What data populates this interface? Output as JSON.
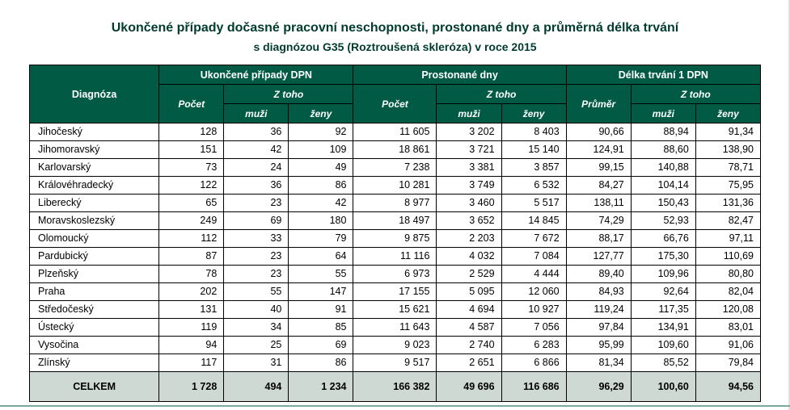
{
  "title": "Ukončené případy dočasné pracovní neschopnosti, prostonané dny a průměrná délka trvání",
  "subtitle": "s diagnózou G35 (Roztroušená skleróza)  v roce 2015",
  "colors": {
    "header_bg": "#015b44",
    "header_text": "#ffffff",
    "title_text": "#013b2d",
    "total_bg": "#cfd9d3",
    "border": "#000000"
  },
  "table": {
    "header": {
      "diagnoza": "Diagnóza",
      "group1": "Ukončené případy DPN",
      "group2": "Prostonané dny",
      "group3": "Délka trvání 1 DPN",
      "pocet": "Počet",
      "ztoho": "Z toho",
      "prumer": "Průměr",
      "muzi": "muži",
      "zeny": "ženy"
    },
    "rows": [
      {
        "label": "Jihočeský",
        "v": [
          "128",
          "36",
          "92",
          "11 605",
          "3 202",
          "8 403",
          "90,66",
          "88,94",
          "91,34"
        ]
      },
      {
        "label": "Jihomoravský",
        "v": [
          "151",
          "42",
          "109",
          "18 861",
          "3 721",
          "15 140",
          "124,91",
          "88,60",
          "138,90"
        ]
      },
      {
        "label": "Karlovarský",
        "v": [
          "73",
          "24",
          "49",
          "7 238",
          "3 381",
          "3 857",
          "99,15",
          "140,88",
          "78,71"
        ]
      },
      {
        "label": "Královéhradecký",
        "v": [
          "122",
          "36",
          "86",
          "10 281",
          "3 749",
          "6 532",
          "84,27",
          "104,14",
          "75,95"
        ]
      },
      {
        "label": "Liberecký",
        "v": [
          "65",
          "23",
          "42",
          "8 977",
          "3 460",
          "5 517",
          "138,11",
          "150,43",
          "131,36"
        ]
      },
      {
        "label": "Moravskoslezský",
        "v": [
          "249",
          "69",
          "180",
          "18 497",
          "3 652",
          "14 845",
          "74,29",
          "52,93",
          "82,47"
        ]
      },
      {
        "label": "Olomoucký",
        "v": [
          "112",
          "33",
          "79",
          "9 875",
          "2 203",
          "7 672",
          "88,17",
          "66,76",
          "97,11"
        ]
      },
      {
        "label": "Pardubický",
        "v": [
          "87",
          "23",
          "64",
          "11 116",
          "4 032",
          "7 084",
          "127,77",
          "175,30",
          "110,69"
        ]
      },
      {
        "label": "Plzeňský",
        "v": [
          "78",
          "23",
          "55",
          "6 973",
          "2 529",
          "4 444",
          "89,40",
          "109,96",
          "80,80"
        ]
      },
      {
        "label": "Praha",
        "v": [
          "202",
          "55",
          "147",
          "17 155",
          "5 095",
          "12 060",
          "84,93",
          "92,64",
          "82,04"
        ]
      },
      {
        "label": "Středočeský",
        "v": [
          "131",
          "40",
          "91",
          "15 621",
          "4 694",
          "10 927",
          "119,24",
          "117,35",
          "120,08"
        ]
      },
      {
        "label": "Ústecký",
        "v": [
          "119",
          "34",
          "85",
          "11 643",
          "4 587",
          "7 056",
          "97,84",
          "134,91",
          "83,01"
        ]
      },
      {
        "label": "Vysočina",
        "v": [
          "94",
          "25",
          "69",
          "9 023",
          "2 740",
          "6 283",
          "95,99",
          "109,60",
          "91,06"
        ]
      },
      {
        "label": "Zlínský",
        "v": [
          "117",
          "31",
          "86",
          "9 517",
          "2 651",
          "6 866",
          "81,34",
          "85,52",
          "79,84"
        ]
      }
    ],
    "total": {
      "label": "CELKEM",
      "v": [
        "1 728",
        "494",
        "1 234",
        "166 382",
        "49 696",
        "116 686",
        "96,29",
        "100,60",
        "94,56"
      ]
    }
  }
}
